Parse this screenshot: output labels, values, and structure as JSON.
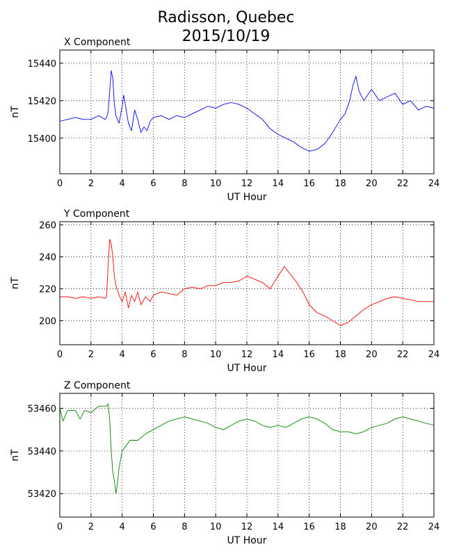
{
  "title": {
    "line1": "Radisson, Quebec",
    "line2": "2015/10/19"
  },
  "chart_data": [
    {
      "type": "line",
      "title": "X Component",
      "xlabel": "UT Hour",
      "ylabel": "nT",
      "xlim": [
        0,
        24
      ],
      "ylim": [
        15381,
        15447
      ],
      "xticks": [
        0,
        2,
        4,
        6,
        8,
        10,
        12,
        14,
        16,
        18,
        20,
        22,
        24
      ],
      "yticks": [
        15400,
        15420,
        15440
      ],
      "grid": true,
      "color": "#0000ff",
      "x": [
        0,
        0.5,
        1,
        1.5,
        2,
        2.5,
        2.9,
        3.0,
        3.1,
        3.2,
        3.3,
        3.4,
        3.5,
        3.6,
        3.8,
        4.0,
        4.1,
        4.2,
        4.4,
        4.6,
        4.8,
        5.0,
        5.2,
        5.4,
        5.6,
        5.8,
        6.0,
        6.5,
        7.0,
        7.5,
        8.0,
        8.5,
        9.0,
        9.5,
        10.0,
        10.5,
        11.0,
        11.5,
        12.0,
        12.5,
        13.0,
        13.5,
        14.0,
        14.5,
        15.0,
        15.5,
        16.0,
        16.5,
        17.0,
        17.5,
        18.0,
        18.3,
        18.6,
        18.8,
        19.0,
        19.2,
        19.5,
        20.0,
        20.5,
        21.0,
        21.5,
        22.0,
        22.5,
        23.0,
        23.5,
        24.0
      ],
      "y": [
        15409,
        15410,
        15411,
        15410,
        15410,
        15412,
        15410,
        15411,
        15414,
        15425,
        15436,
        15432,
        15418,
        15412,
        15408,
        15417,
        15423,
        15418,
        15408,
        15404,
        15415,
        15410,
        15403,
        15406,
        15404,
        15409,
        15411,
        15412,
        15410,
        15412,
        15411,
        15413,
        15415,
        15417,
        15416,
        15418,
        15419,
        15418,
        15416,
        15413,
        15410,
        15405,
        15402,
        15400,
        15398,
        15395,
        15393,
        15394,
        15397,
        15403,
        15410,
        15413,
        15420,
        15428,
        15433,
        15425,
        15420,
        15426,
        15420,
        15422,
        15424,
        15418,
        15420,
        15415,
        15417,
        15416
      ]
    },
    {
      "type": "line",
      "title": "Y Component",
      "xlabel": "UT Hour",
      "ylabel": "nT",
      "xlim": [
        0,
        24
      ],
      "ylim": [
        185,
        262
      ],
      "xticks": [
        0,
        2,
        4,
        6,
        8,
        10,
        12,
        14,
        16,
        18,
        20,
        22,
        24
      ],
      "yticks": [
        200,
        220,
        240,
        260
      ],
      "grid": true,
      "color": "#ff0000",
      "x": [
        0,
        0.5,
        1,
        1.5,
        2,
        2.5,
        2.9,
        3.0,
        3.1,
        3.2,
        3.3,
        3.4,
        3.5,
        3.6,
        3.8,
        4.0,
        4.2,
        4.4,
        4.6,
        4.8,
        5.0,
        5.2,
        5.5,
        5.8,
        6.0,
        6.5,
        7.0,
        7.5,
        8.0,
        8.5,
        9.0,
        9.5,
        10.0,
        10.5,
        11.0,
        11.5,
        12.0,
        12.5,
        13.0,
        13.5,
        14.0,
        14.4,
        14.8,
        15.2,
        15.6,
        16.0,
        16.5,
        17.0,
        17.5,
        18.0,
        18.5,
        19.0,
        19.5,
        20.0,
        20.5,
        21.0,
        21.5,
        22.0,
        22.5,
        23.0,
        23.5,
        24.0
      ],
      "y": [
        215,
        215,
        214,
        215,
        214,
        215,
        214,
        215,
        235,
        251,
        248,
        240,
        228,
        222,
        216,
        212,
        218,
        208,
        216,
        212,
        218,
        210,
        215,
        212,
        216,
        218,
        217,
        216,
        220,
        221,
        220,
        222,
        222,
        224,
        224,
        225,
        228,
        226,
        224,
        220,
        228,
        234,
        229,
        224,
        218,
        210,
        205,
        203,
        200,
        197,
        199,
        203,
        207,
        210,
        212,
        214,
        215,
        214,
        213,
        212,
        212,
        212
      ]
    },
    {
      "type": "line",
      "title": "Z Component",
      "xlabel": "UT Hour",
      "ylabel": "nT",
      "xlim": [
        0,
        24
      ],
      "ylim": [
        53409,
        53467
      ],
      "xticks": [
        0,
        2,
        4,
        6,
        8,
        10,
        12,
        14,
        16,
        18,
        20,
        22,
        24
      ],
      "yticks": [
        53420,
        53440,
        53460
      ],
      "grid": true,
      "color": "#008000",
      "x": [
        0,
        0.2,
        0.5,
        1.0,
        1.3,
        1.6,
        2.0,
        2.5,
        3.0,
        3.1,
        3.2,
        3.3,
        3.4,
        3.5,
        3.6,
        3.7,
        3.8,
        4.0,
        4.2,
        4.5,
        5.0,
        5.5,
        6.0,
        6.5,
        7.0,
        7.5,
        8.0,
        8.5,
        9.0,
        9.5,
        10.0,
        10.5,
        11.0,
        11.5,
        12.0,
        12.5,
        13.0,
        13.5,
        14.0,
        14.5,
        15.0,
        15.5,
        16.0,
        16.5,
        17.0,
        17.5,
        18.0,
        18.5,
        19.0,
        19.5,
        20.0,
        20.5,
        21.0,
        21.5,
        22.0,
        22.5,
        23.0,
        23.5,
        24.0
      ],
      "y": [
        53460,
        53454,
        53459,
        53459,
        53455,
        53459,
        53458,
        53461,
        53461,
        53462,
        53455,
        53440,
        53430,
        53426,
        53420,
        53425,
        53432,
        53440,
        53442,
        53445,
        53445,
        53448,
        53450,
        53452,
        53454,
        53455,
        53456,
        53455,
        53454,
        53453,
        53451,
        53450,
        53452,
        53454,
        53455,
        53454,
        53452,
        53451,
        53452,
        53451,
        53453,
        53455,
        53456,
        53455,
        53453,
        53450,
        53449,
        53449,
        53448,
        53449,
        53451,
        53452,
        53453,
        53455,
        53456,
        53455,
        53454,
        53453,
        53452
      ]
    }
  ]
}
